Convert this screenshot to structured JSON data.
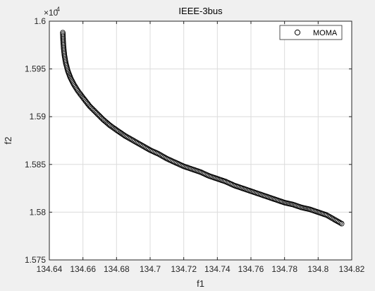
{
  "chart_data": {
    "type": "scatter",
    "title": "IEEE-3bus",
    "xlabel": "f1",
    "ylabel": "f2",
    "y_exponent_label": "×10",
    "y_exponent_power": "4",
    "xlim": [
      134.64,
      134.82
    ],
    "ylim": [
      15750,
      16000
    ],
    "x_ticks": [
      134.64,
      134.66,
      134.68,
      134.7,
      134.72,
      134.74,
      134.76,
      134.78,
      134.8,
      134.82
    ],
    "x_tick_labels": [
      "134.64",
      "134.66",
      "134.68",
      "134.7",
      "134.72",
      "134.74",
      "134.76",
      "134.78",
      "134.8",
      "134.82"
    ],
    "y_ticks": [
      15750,
      15800,
      15850,
      15900,
      15950,
      16000
    ],
    "y_tick_labels": [
      "1.575",
      "1.58",
      "1.585",
      "1.59",
      "1.595",
      "1.6"
    ],
    "grid": true,
    "legend_position": "top-right",
    "marker": "circle-open",
    "series": [
      {
        "name": "MOMA",
        "x": [
          134.648,
          134.6482,
          134.6485,
          134.649,
          134.6498,
          134.651,
          134.6525,
          134.6545,
          134.657,
          134.66,
          134.664,
          134.668,
          134.672,
          134.676,
          134.68,
          134.685,
          134.69,
          134.695,
          134.7,
          134.705,
          134.71,
          134.715,
          134.72,
          134.725,
          134.73,
          134.735,
          134.74,
          134.745,
          134.75,
          134.755,
          134.76,
          134.765,
          134.77,
          134.775,
          134.78,
          134.785,
          134.79,
          134.795,
          134.8,
          134.805,
          134.81,
          134.814
        ],
        "y": [
          15988,
          15980,
          15972,
          15964,
          15956,
          15948,
          15941,
          15934,
          15927,
          15920,
          15911,
          15904,
          15897,
          15891,
          15886,
          15880,
          15875,
          15870,
          15865,
          15861,
          15856,
          15852,
          15848,
          15845,
          15842,
          15838,
          15835,
          15832,
          15828,
          15825,
          15822,
          15819,
          15816,
          15813,
          15810,
          15808,
          15805,
          15803,
          15800,
          15797,
          15792,
          15788
        ]
      }
    ]
  }
}
